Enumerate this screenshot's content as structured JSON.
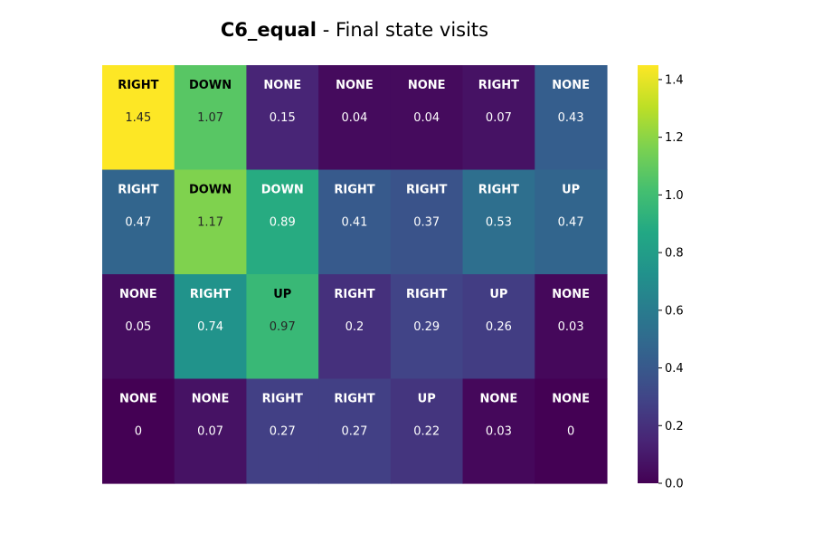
{
  "chart_data": {
    "type": "heatmap",
    "title": {
      "bold": "C6_equal",
      "rest": " - Final state visits"
    },
    "rows": 4,
    "cols": 7,
    "actions": [
      [
        "RIGHT",
        "DOWN",
        "NONE",
        "NONE",
        "NONE",
        "RIGHT",
        "NONE"
      ],
      [
        "RIGHT",
        "DOWN",
        "DOWN",
        "RIGHT",
        "RIGHT",
        "RIGHT",
        "UP"
      ],
      [
        "NONE",
        "RIGHT",
        "UP",
        "RIGHT",
        "RIGHT",
        "UP",
        "NONE"
      ],
      [
        "NONE",
        "NONE",
        "RIGHT",
        "RIGHT",
        "UP",
        "NONE",
        "NONE"
      ]
    ],
    "values": [
      [
        1.45,
        1.07,
        0.15,
        0.04,
        0.04,
        0.07,
        0.43
      ],
      [
        0.47,
        1.17,
        0.89,
        0.41,
        0.37,
        0.53,
        0.47
      ],
      [
        0.05,
        0.74,
        0.97,
        0.2,
        0.29,
        0.26,
        0.03
      ],
      [
        0,
        0.07,
        0.27,
        0.27,
        0.22,
        0.03,
        0
      ]
    ],
    "colorbar": {
      "colormap": "viridis",
      "range": [
        0,
        1.45
      ],
      "ticks": [
        "0.0",
        "0.2",
        "0.4",
        "0.6",
        "0.8",
        "1.0",
        "1.2",
        "1.4"
      ]
    }
  }
}
